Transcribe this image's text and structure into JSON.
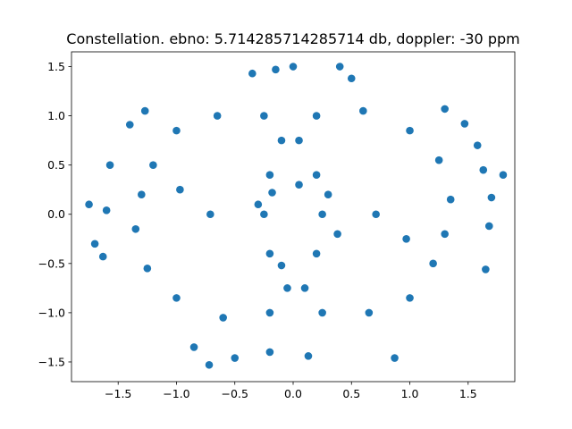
{
  "chart_data": {
    "type": "scatter",
    "title": "Constellation. ebno: 5.714285714285714 db, doppler: -30 ppm",
    "xlabel": "",
    "ylabel": "",
    "xlim": [
      -1.9,
      1.9
    ],
    "ylim": [
      -1.7,
      1.65
    ],
    "xticks": [
      -1.5,
      -1.0,
      -0.5,
      0.0,
      0.5,
      1.0,
      1.5
    ],
    "xtick_labels": [
      "−1.5",
      "−1.0",
      "−0.5",
      "0.0",
      "0.5",
      "1.0",
      "1.5"
    ],
    "yticks": [
      -1.5,
      -1.0,
      -0.5,
      0.0,
      0.5,
      1.0,
      1.5
    ],
    "ytick_labels": [
      "−1.5",
      "−1.0",
      "−0.5",
      "0.0",
      "0.5",
      "1.0",
      "1.5"
    ],
    "grid": false,
    "legend": "none",
    "marker_color": "#1f77b4",
    "series": [
      {
        "points": [
          [
            -0.71,
            0.0
          ],
          [
            0.71,
            0.0
          ],
          [
            -0.97,
            0.25
          ],
          [
            0.97,
            -0.25
          ],
          [
            -1.2,
            0.5
          ],
          [
            -1.3,
            0.2
          ],
          [
            -1.35,
            -0.15
          ],
          [
            -1.25,
            -0.55
          ],
          [
            -1.0,
            -0.85
          ],
          [
            -0.6,
            -1.05
          ],
          [
            -0.2,
            -1.0
          ],
          [
            0.1,
            -0.75
          ],
          [
            0.2,
            -0.4
          ],
          [
            0.25,
            0.0
          ],
          [
            0.2,
            0.4
          ],
          [
            0.05,
            0.75
          ],
          [
            -0.25,
            1.0
          ],
          [
            -0.65,
            1.0
          ],
          [
            -1.0,
            0.85
          ],
          [
            1.2,
            -0.5
          ],
          [
            1.3,
            -0.2
          ],
          [
            1.35,
            0.15
          ],
          [
            1.25,
            0.55
          ],
          [
            1.0,
            0.85
          ],
          [
            0.6,
            1.05
          ],
          [
            0.2,
            1.0
          ],
          [
            -0.1,
            0.75
          ],
          [
            -0.2,
            0.4
          ],
          [
            -0.25,
            0.0
          ],
          [
            -0.2,
            -0.4
          ],
          [
            -0.05,
            -0.75
          ],
          [
            0.25,
            -1.0
          ],
          [
            0.65,
            -1.0
          ],
          [
            1.0,
            -0.85
          ],
          [
            -1.75,
            0.1
          ],
          [
            -1.7,
            -0.3
          ],
          [
            -1.63,
            -0.43
          ],
          [
            -1.6,
            0.04
          ],
          [
            -1.57,
            0.5
          ],
          [
            -1.4,
            0.91
          ],
          [
            -1.27,
            1.05
          ],
          [
            -0.72,
            -1.53
          ],
          [
            -0.85,
            -1.35
          ],
          [
            -0.5,
            -1.46
          ],
          [
            -0.2,
            -1.4
          ],
          [
            0.13,
            -1.44
          ],
          [
            0.87,
            -1.46
          ],
          [
            0.4,
            1.5
          ],
          [
            0.0,
            1.5
          ],
          [
            -0.15,
            1.47
          ],
          [
            -0.35,
            1.43
          ],
          [
            0.5,
            1.38
          ],
          [
            1.8,
            0.4
          ],
          [
            1.65,
            -0.56
          ],
          [
            1.7,
            0.17
          ],
          [
            1.58,
            0.7
          ],
          [
            1.47,
            0.92
          ],
          [
            1.3,
            1.07
          ],
          [
            1.63,
            0.45
          ],
          [
            1.68,
            -0.12
          ],
          [
            -0.18,
            0.22
          ],
          [
            0.05,
            0.3
          ],
          [
            -0.3,
            0.1
          ],
          [
            0.3,
            0.2
          ],
          [
            0.38,
            -0.2
          ],
          [
            -0.1,
            -0.52
          ]
        ]
      }
    ]
  }
}
